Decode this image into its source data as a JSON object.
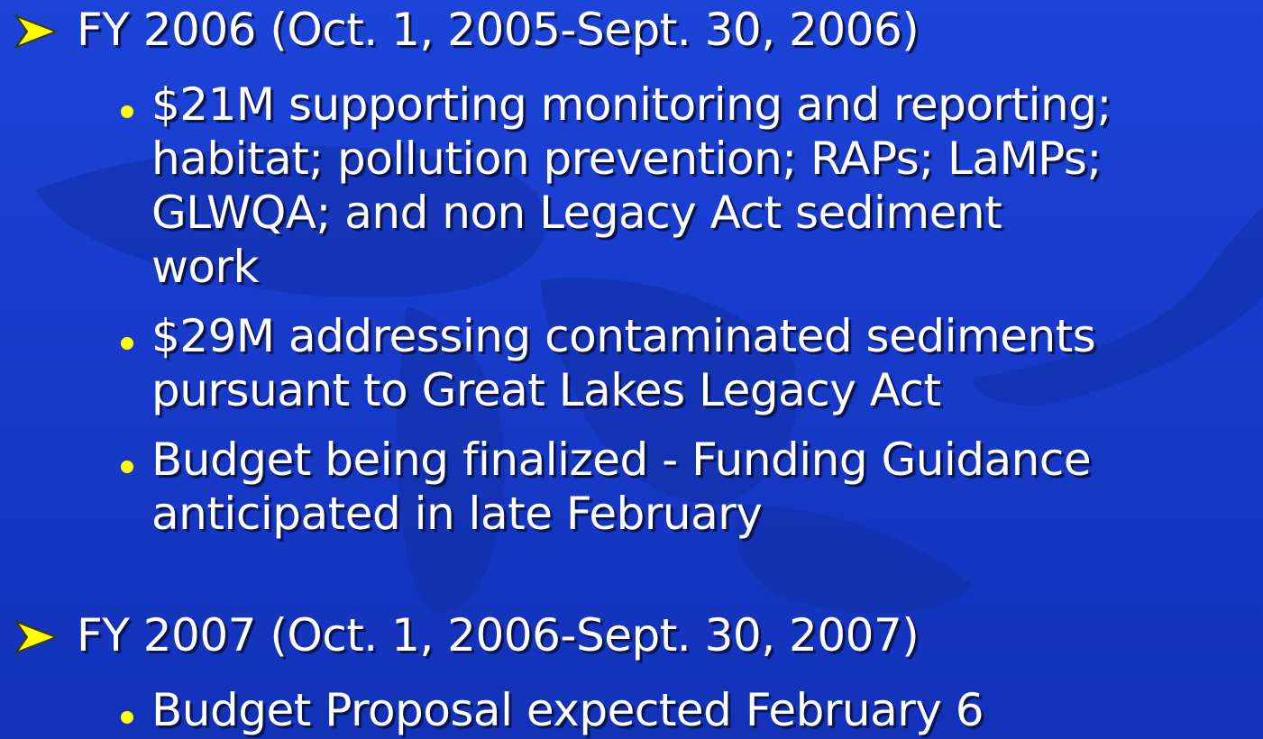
{
  "sections": [
    {
      "heading": "FY 2006 (Oct. 1, 2005-Sept. 30, 2006)",
      "items": [
        {
          "lines": [
            "$21M supporting monitoring and reporting;",
            "habitat; pollution prevention; RAPs; LaMPs;",
            "GLWQA; and non Legacy Act sediment",
            "work"
          ]
        },
        {
          "lines": [
            "$29M addressing contaminated sediments",
            "pursuant to Great Lakes Legacy Act"
          ]
        },
        {
          "lines": [
            "Budget being finalized - Funding Guidance",
            "anticipated in late February"
          ]
        }
      ]
    },
    {
      "heading": "FY 2007 (Oct. 1, 2006-Sept. 30, 2007)",
      "items": [
        {
          "lines": [
            "Budget Proposal expected February 6"
          ]
        }
      ]
    }
  ]
}
